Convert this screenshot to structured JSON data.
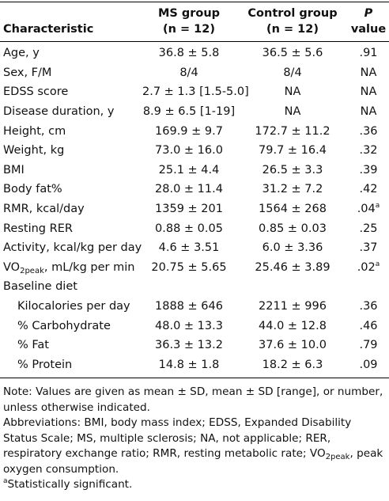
{
  "table": {
    "header": [
      [
        "Characteristic"
      ],
      [
        "MS group",
        "(n = 12)"
      ],
      [
        "Control group",
        "(n = 12)"
      ],
      [
        "P",
        "value"
      ]
    ],
    "rows": [
      [
        "Age, y",
        "36.8 ± 5.8",
        "36.5 ± 5.6",
        ".91"
      ],
      [
        "Sex, F/M",
        "8/4",
        "8/4",
        "NA"
      ],
      [
        "EDSS score",
        "2.7 ± 1.3 [1.5-5.0]",
        "NA",
        "NA"
      ],
      [
        "Disease duration, y",
        "8.9 ± 6.5 [1-19]",
        "NA",
        "NA"
      ],
      [
        "Height, cm",
        "169.9 ± 9.7",
        "172.7 ± 11.2",
        ".36"
      ],
      [
        "Weight, kg",
        "73.0 ± 16.0",
        "79.7 ± 16.4",
        ".32"
      ],
      [
        "BMI",
        "25.1 ± 4.4",
        "26.5 ± 3.3",
        ".39"
      ],
      [
        "Body fat%",
        "28.0 ± 11.4",
        "31.2 ± 7.2",
        ".42"
      ],
      [
        "RMR, kcal/day",
        "1359 ± 201",
        "1564 ± 268",
        {
          "text": ".04",
          "sup": "a"
        }
      ],
      [
        "Resting RER",
        "0.88 ± 0.05",
        "0.85 ± 0.03",
        ".25"
      ],
      [
        "Activity, kcal/kg per day",
        "4.6 ± 3.51",
        "6.0 ± 3.36",
        ".37"
      ],
      [
        {
          "text": "VO",
          "sub": "2peak",
          "after": ", mL/kg per min"
        },
        "20.75 ± 5.65",
        "25.46 ± 3.89",
        {
          "text": ".02",
          "sup": "a"
        }
      ],
      {
        "label": "Baseline diet",
        "rows": [
          [
            "Kilocalories per day",
            "1888 ± 646",
            "2211 ± 996",
            ".36"
          ],
          [
            "% Carbohydrate",
            "48.0 ± 13.3",
            "44.0 ± 12.8",
            ".46"
          ],
          [
            "% Fat",
            "36.3 ± 13.2",
            "37.6 ± 10.0",
            ".79"
          ],
          [
            "% Protein",
            "14.8 ± 1.8",
            "18.2 ± 6.3",
            ".09"
          ]
        ]
      }
    ],
    "notes": [
      "Note: Values are given as mean ± SD, mean ± SD [range], or number, unless otherwise indicated.",
      {
        "text": "Abbreviations: BMI, body mass index; EDSS, Expanded Disability Status Scale; MS, multiple sclerosis; NA, not applicable; RER, respiratory exchange ratio; RMR, resting metabolic rate; VO",
        "sub": "2peak",
        "after": ", peak oxygen consumption."
      },
      {
        "sup": "a",
        "text": "Statistically significant."
      }
    ]
  }
}
